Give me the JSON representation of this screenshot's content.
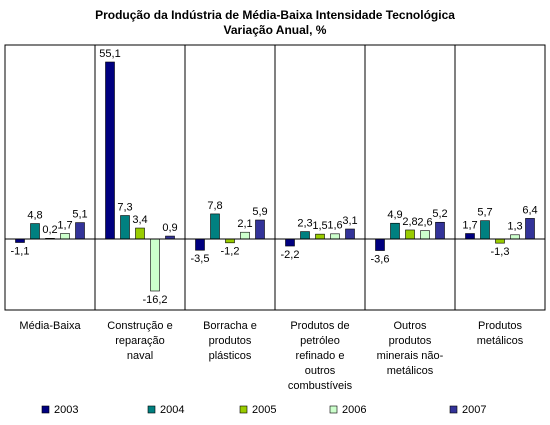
{
  "chart_data": {
    "type": "bar",
    "title": "Produção da Indústria de Média-Baixa Intensidade Tecnológica",
    "subtitle": "Variação Anual, %",
    "categories": [
      "Média-Baixa",
      "Construção e reparação naval",
      "Borracha e produtos plásticos",
      "Produtos de petróleo refinado e outros combustíveis",
      "Outros produtos minerais não-metálicos",
      "Produtos metálicos"
    ],
    "series": [
      {
        "name": "2003",
        "color": "#000080",
        "values": [
          -1.1,
          55.1,
          -3.5,
          -2.2,
          -3.6,
          1.7
        ],
        "value_labels": [
          "-1,1",
          "55,1",
          "-3,5",
          "-2,2",
          "-3,6",
          "1,7"
        ]
      },
      {
        "name": "2004",
        "color": "#008080",
        "values": [
          4.8,
          7.3,
          7.8,
          2.3,
          4.9,
          5.7
        ],
        "value_labels": [
          "4,8",
          "7,3",
          "7,8",
          "2,3",
          "4,9",
          "5,7"
        ]
      },
      {
        "name": "2005",
        "color": "#99cc00",
        "values": [
          0.2,
          3.4,
          -1.2,
          1.5,
          2.8,
          -1.3
        ],
        "value_labels": [
          "0,2",
          "3,4",
          "-1,2",
          "1,5",
          "2,8",
          "-1,3"
        ]
      },
      {
        "name": "2006",
        "color": "#ccffcc",
        "values": [
          1.7,
          -16.2,
          2.1,
          1.6,
          2.6,
          1.3
        ],
        "value_labels": [
          "1,7",
          "-16,2",
          "2,1",
          "1,6",
          "2,6",
          "1,3"
        ]
      },
      {
        "name": "2007",
        "color": "#333399",
        "values": [
          5.1,
          0.9,
          5.9,
          3.1,
          5.2,
          6.4
        ],
        "value_labels": [
          "5,1",
          "0,9",
          "5,9",
          "3,1",
          "5,2",
          "6,4"
        ]
      }
    ],
    "legend": "bottom"
  }
}
